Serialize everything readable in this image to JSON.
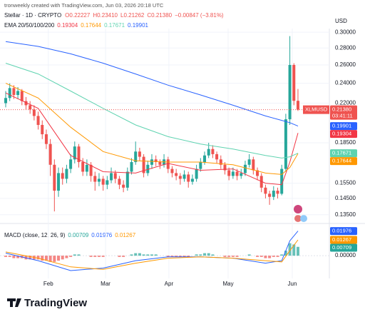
{
  "header": {
    "credit": "tronweekly created with TradingView.com, Jun 03, 2026 20:18 UTC",
    "symbol": "Stellar · 1D · CRYPTO",
    "ohlc": [
      "O0.22227",
      "H0.23410",
      "L0.21262",
      "C0.21380"
    ],
    "change": "−0.00847 (−3.81%)",
    "currency": "USD"
  },
  "chart_data": {
    "type": "candlestick",
    "log_scale": true,
    "up_color": "#26a69a",
    "down_color": "#ef5350",
    "ylim": [
      0.132,
      0.303
    ],
    "yticks": [
      {
        "value": 0.135,
        "label": "0.13500"
      },
      {
        "value": 0.145,
        "label": "0.14500"
      },
      {
        "value": 0.155,
        "label": "0.15500"
      },
      {
        "value": 0.185,
        "label": "0.18500"
      },
      {
        "value": 0.22,
        "label": "0.22000"
      },
      {
        "value": 0.24,
        "label": "0.24000"
      },
      {
        "value": 0.26,
        "label": "0.26000"
      },
      {
        "value": 0.28,
        "label": "0.28000"
      },
      {
        "value": 0.3,
        "label": "0.30000"
      }
    ],
    "xticks": [
      {
        "value": 10.5,
        "label": "Feb"
      },
      {
        "value": 24.6,
        "label": "Mar"
      },
      {
        "value": 40.2,
        "label": "Apr"
      },
      {
        "value": 54.8,
        "label": "May"
      },
      {
        "value": 70.6,
        "label": "Jun"
      }
    ],
    "candles": [
      [
        0.22,
        0.232,
        0.216,
        0.225
      ],
      [
        0.225,
        0.24,
        0.222,
        0.235
      ],
      [
        0.235,
        0.238,
        0.224,
        0.228
      ],
      [
        0.228,
        0.236,
        0.224,
        0.232
      ],
      [
        0.232,
        0.234,
        0.218,
        0.222
      ],
      [
        0.222,
        0.226,
        0.214,
        0.218
      ],
      [
        0.218,
        0.222,
        0.21,
        0.214
      ],
      [
        0.214,
        0.218,
        0.204,
        0.208
      ],
      [
        0.208,
        0.212,
        0.196,
        0.2
      ],
      [
        0.2,
        0.204,
        0.188,
        0.192
      ],
      [
        0.192,
        0.196,
        0.18,
        0.184
      ],
      [
        0.184,
        0.188,
        0.16,
        0.168
      ],
      [
        0.168,
        0.172,
        0.137,
        0.15
      ],
      [
        0.15,
        0.166,
        0.146,
        0.162
      ],
      [
        0.162,
        0.166,
        0.154,
        0.158
      ],
      [
        0.158,
        0.168,
        0.155,
        0.165
      ],
      [
        0.165,
        0.176,
        0.162,
        0.172
      ],
      [
        0.172,
        0.186,
        0.169,
        0.182
      ],
      [
        0.182,
        0.184,
        0.166,
        0.17
      ],
      [
        0.17,
        0.173,
        0.16,
        0.163
      ],
      [
        0.163,
        0.172,
        0.16,
        0.168
      ],
      [
        0.168,
        0.17,
        0.156,
        0.16
      ],
      [
        0.16,
        0.163,
        0.15,
        0.156
      ],
      [
        0.156,
        0.162,
        0.153,
        0.158
      ],
      [
        0.158,
        0.16,
        0.15,
        0.154
      ],
      [
        0.154,
        0.16,
        0.151,
        0.157
      ],
      [
        0.157,
        0.166,
        0.155,
        0.162
      ],
      [
        0.162,
        0.164,
        0.155,
        0.158
      ],
      [
        0.158,
        0.16,
        0.151,
        0.154
      ],
      [
        0.154,
        0.157,
        0.149,
        0.152
      ],
      [
        0.152,
        0.166,
        0.15,
        0.163
      ],
      [
        0.163,
        0.173,
        0.161,
        0.17
      ],
      [
        0.17,
        0.186,
        0.168,
        0.178
      ],
      [
        0.178,
        0.181,
        0.171,
        0.174
      ],
      [
        0.174,
        0.176,
        0.159,
        0.162
      ],
      [
        0.162,
        0.171,
        0.16,
        0.168
      ],
      [
        0.168,
        0.176,
        0.165,
        0.172
      ],
      [
        0.172,
        0.175,
        0.167,
        0.17
      ],
      [
        0.17,
        0.172,
        0.165,
        0.168
      ],
      [
        0.168,
        0.176,
        0.166,
        0.172
      ],
      [
        0.172,
        0.174,
        0.162,
        0.165
      ],
      [
        0.165,
        0.167,
        0.159,
        0.162
      ],
      [
        0.162,
        0.165,
        0.157,
        0.16
      ],
      [
        0.16,
        0.162,
        0.154,
        0.158
      ],
      [
        0.158,
        0.164,
        0.156,
        0.161
      ],
      [
        0.161,
        0.163,
        0.152,
        0.156
      ],
      [
        0.156,
        0.161,
        0.154,
        0.158
      ],
      [
        0.158,
        0.168,
        0.156,
        0.165
      ],
      [
        0.165,
        0.173,
        0.163,
        0.17
      ],
      [
        0.17,
        0.178,
        0.168,
        0.175
      ],
      [
        0.175,
        0.185,
        0.173,
        0.18
      ],
      [
        0.18,
        0.183,
        0.173,
        0.176
      ],
      [
        0.176,
        0.178,
        0.169,
        0.172
      ],
      [
        0.172,
        0.175,
        0.165,
        0.168
      ],
      [
        0.168,
        0.17,
        0.161,
        0.164
      ],
      [
        0.164,
        0.166,
        0.157,
        0.16
      ],
      [
        0.16,
        0.166,
        0.158,
        0.163
      ],
      [
        0.163,
        0.165,
        0.157,
        0.16
      ],
      [
        0.16,
        0.165,
        0.158,
        0.162
      ],
      [
        0.162,
        0.171,
        0.16,
        0.168
      ],
      [
        0.168,
        0.176,
        0.166,
        0.172
      ],
      [
        0.172,
        0.174,
        0.161,
        0.164
      ],
      [
        0.164,
        0.166,
        0.157,
        0.16
      ],
      [
        0.16,
        0.162,
        0.149,
        0.152
      ],
      [
        0.152,
        0.154,
        0.145,
        0.148
      ],
      [
        0.148,
        0.15,
        0.141,
        0.146
      ],
      [
        0.146,
        0.153,
        0.144,
        0.15
      ],
      [
        0.15,
        0.152,
        0.145,
        0.148
      ],
      [
        0.148,
        0.168,
        0.147,
        0.165
      ],
      [
        0.165,
        0.21,
        0.163,
        0.205
      ],
      [
        0.205,
        0.295,
        0.2,
        0.26
      ],
      [
        0.26,
        0.262,
        0.218,
        0.22227
      ],
      [
        0.22227,
        0.2341,
        0.21262,
        0.2138
      ]
    ],
    "symbol_tag": "XLMUSD",
    "last_price_label": "0.21380",
    "countdown": "03:41:11",
    "ema_label": "EMA 20/50/100/200",
    "ema": [
      {
        "color": "#f23645",
        "x": [
          0,
          8,
          16,
          24,
          32,
          40,
          48,
          56,
          64,
          68,
          70,
          72
        ],
        "values": [
          0.23,
          0.215,
          0.175,
          0.163,
          0.162,
          0.169,
          0.164,
          0.165,
          0.155,
          0.154,
          0.17,
          0.19304
        ],
        "value_label": "0.19304"
      },
      {
        "color": "#ff9800",
        "x": [
          0,
          8,
          16,
          24,
          32,
          40,
          48,
          56,
          64,
          68,
          70,
          72
        ],
        "values": [
          0.24,
          0.225,
          0.198,
          0.178,
          0.171,
          0.17,
          0.17,
          0.168,
          0.162,
          0.161,
          0.166,
          0.17644
        ],
        "value_label": "0.17644"
      },
      {
        "color": "#5fd3b0",
        "x": [
          0,
          8,
          16,
          24,
          32,
          40,
          48,
          56,
          64,
          68,
          70,
          72
        ],
        "values": [
          0.262,
          0.25,
          0.232,
          0.215,
          0.2,
          0.19,
          0.184,
          0.18,
          0.175,
          0.173,
          0.174,
          0.17671
        ],
        "value_label": "0.17671"
      },
      {
        "color": "#2962ff",
        "x": [
          0,
          8,
          16,
          24,
          32,
          40,
          48,
          56,
          64,
          68,
          70,
          72
        ],
        "values": [
          0.288,
          0.282,
          0.273,
          0.262,
          0.25,
          0.238,
          0.228,
          0.218,
          0.208,
          0.204,
          0.202,
          0.19901
        ],
        "value_label": "0.19901"
      }
    ],
    "macd": {
      "title": "MACD (close, 12, 26, 9)",
      "ylim": [
        -0.016,
        0.023
      ],
      "yticks": [
        {
          "value": 0,
          "label": "0.00000"
        }
      ],
      "histogram": {
        "color_up": "#26a69a",
        "color_down": "#ef5350",
        "values": [
          -0.001,
          -0.001,
          -0.002,
          -0.002,
          -0.002,
          -0.003,
          -0.003,
          -0.003,
          -0.003,
          -0.004,
          -0.004,
          -0.005,
          -0.005,
          -0.004,
          -0.003,
          -0.002,
          -0.001,
          0.001,
          0.001,
          0.0,
          0.0,
          -0.001,
          -0.001,
          -0.001,
          -0.001,
          0.0,
          0.0,
          0.0,
          -0.001,
          -0.001,
          0.0,
          0.001,
          0.002,
          0.002,
          0.001,
          0.001,
          0.001,
          0.001,
          0.0,
          0.0,
          -0.001,
          -0.001,
          -0.001,
          -0.001,
          -0.001,
          -0.001,
          0.0,
          0.001,
          0.001,
          0.002,
          0.002,
          0.001,
          0.0,
          0.0,
          -0.001,
          -0.001,
          -0.001,
          -0.001,
          0.0,
          0.0,
          0.001,
          0.0,
          -0.001,
          -0.001,
          -0.002,
          -0.002,
          -0.001,
          -0.001,
          0.001,
          0.004,
          0.01,
          0.009,
          0.00709
        ],
        "value_label": "0.00709"
      },
      "lines": [
        {
          "color": "#2962ff",
          "x": [
            0,
            8,
            16,
            24,
            32,
            40,
            48,
            56,
            64,
            68,
            70,
            72
          ],
          "values": [
            0.002,
            -0.004,
            -0.012,
            -0.01,
            -0.004,
            -0.001,
            -0.001,
            -0.002,
            -0.006,
            -0.004,
            0.012,
            0.01976
          ],
          "value_label": "0.01976"
        },
        {
          "color": "#ff9800",
          "x": [
            0,
            8,
            16,
            24,
            32,
            40,
            48,
            56,
            64,
            68,
            70,
            72
          ],
          "values": [
            0.003,
            -0.002,
            -0.009,
            -0.011,
            -0.006,
            -0.002,
            -0.001,
            -0.002,
            -0.004,
            -0.005,
            0.004,
            0.01267
          ],
          "value_label": "0.01267"
        }
      ]
    }
  },
  "footer": {
    "brand": "TradingView"
  }
}
